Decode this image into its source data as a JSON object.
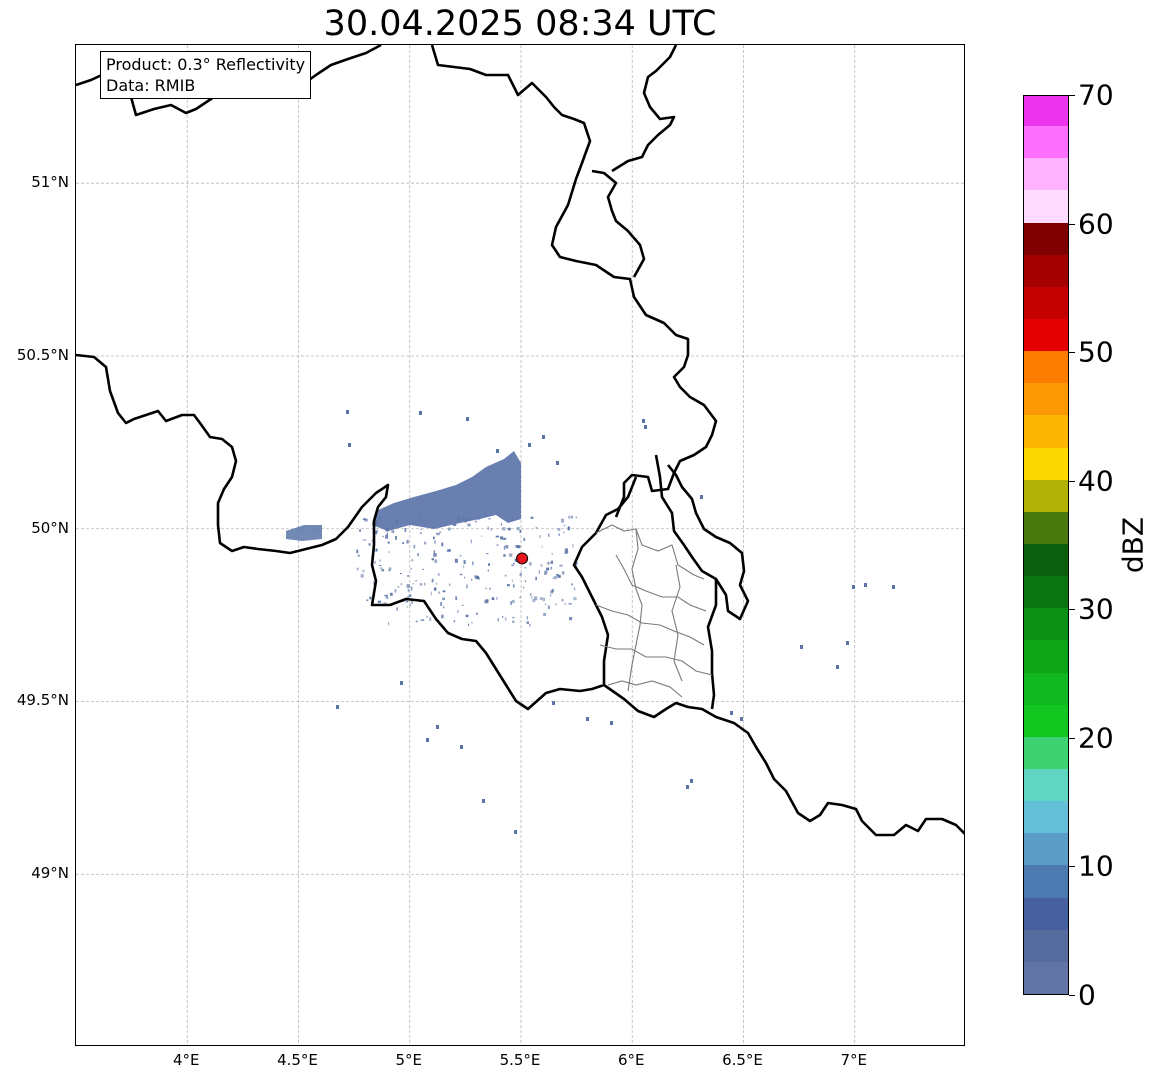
{
  "title": "30.04.2025 08:34 UTC",
  "info": {
    "product": "Product: 0.3° Reflectivity",
    "data": "Data: RMIB"
  },
  "map": {
    "lon_range": [
      3.5,
      7.5
    ],
    "lat_range": [
      48.5,
      51.4
    ],
    "grid": true,
    "lon_ticks": [
      {
        "value": 4.0,
        "label": "4°E"
      },
      {
        "value": 4.5,
        "label": "4.5°E"
      },
      {
        "value": 5.0,
        "label": "5°E"
      },
      {
        "value": 5.5,
        "label": "5.5°E"
      },
      {
        "value": 6.0,
        "label": "6°E"
      },
      {
        "value": 6.5,
        "label": "6.5°E"
      },
      {
        "value": 7.0,
        "label": "7°E"
      }
    ],
    "lat_ticks": [
      {
        "value": 49.0,
        "label": "49°N"
      },
      {
        "value": 49.5,
        "label": "49.5°N"
      },
      {
        "value": 50.0,
        "label": "50°N"
      },
      {
        "value": 50.5,
        "label": "50.5°N"
      },
      {
        "value": 51.0,
        "label": "51°N"
      }
    ],
    "radar_site": {
      "lon": 5.505,
      "lat": 49.914,
      "color": "#e8141c"
    },
    "echo_color": "#5b74a8"
  },
  "colorbar": {
    "unit": "dBZ",
    "min": 0,
    "max": 70,
    "labels": [
      "0",
      "10",
      "20",
      "30",
      "40",
      "50",
      "60",
      "70"
    ],
    "colors": [
      "#6274a6",
      "#566c9f",
      "#4660a0",
      "#4e7ab2",
      "#5c9dc8",
      "#64bfd8",
      "#5fd5c2",
      "#3fd272",
      "#12c71f",
      "#12b81f",
      "#0ea417",
      "#0d8e15",
      "#0b7611",
      "#0a5e0e",
      "#497a10",
      "#b2b206",
      "#fcd700",
      "#fcb603",
      "#fd9805",
      "#fc7d01",
      "#e40000",
      "#c40000",
      "#a30000",
      "#7f0000",
      "#ffdcff",
      "#ffb2ff",
      "#ff6fff",
      "#eb34eb"
    ]
  }
}
